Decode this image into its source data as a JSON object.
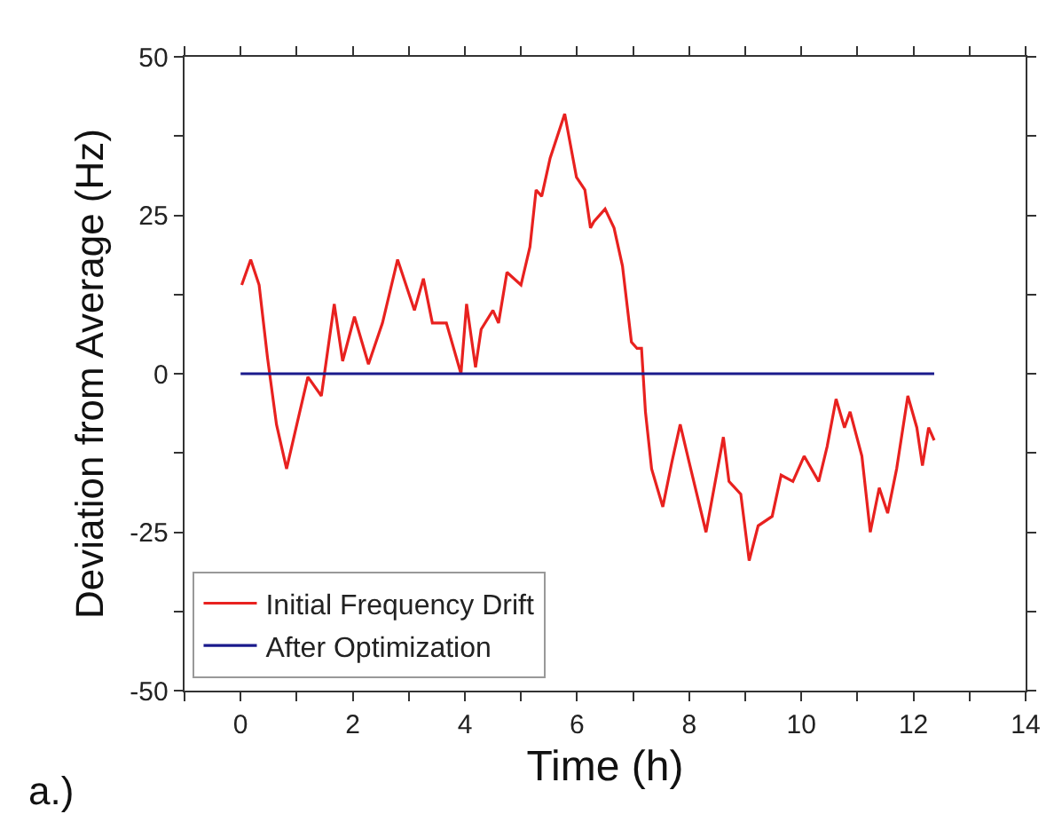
{
  "chart_data": {
    "type": "line",
    "xlabel": "Time (h)",
    "ylabel": "Deviation from Average (Hz)",
    "annotations": [
      "a.)"
    ],
    "series": [
      {
        "name": "Initial Frequency Drift",
        "color": "#e8211f",
        "x": [
          0.02,
          0.18,
          0.33,
          0.48,
          0.64,
          0.82,
          0.99,
          1.2,
          1.44,
          1.67,
          1.82,
          2.03,
          2.28,
          2.53,
          2.8,
          3.1,
          3.26,
          3.42,
          3.67,
          3.93,
          4.03,
          4.19,
          4.29,
          4.5,
          4.6,
          4.75,
          5.0,
          5.16,
          5.27,
          5.37,
          5.52,
          5.78,
          5.99,
          6.14,
          6.24,
          6.3,
          6.5,
          6.66,
          6.81,
          6.97,
          7.07,
          7.15,
          7.22,
          7.33,
          7.53,
          7.69,
          7.84,
          8.0,
          8.3,
          8.61,
          8.71,
          8.92,
          9.07,
          9.23,
          9.48,
          9.64,
          9.85,
          10.05,
          10.31,
          10.46,
          10.62,
          10.77,
          10.87,
          11.08,
          11.23,
          11.39,
          11.54,
          11.7,
          11.9,
          12.06,
          12.16,
          12.27,
          12.37
        ],
        "values": [
          14,
          18,
          14,
          2.5,
          -8,
          -15,
          -8.5,
          -0.5,
          -3.5,
          11,
          2,
          9,
          1.5,
          8,
          18,
          10,
          15,
          8,
          8,
          0,
          11,
          1,
          7,
          10,
          8,
          16,
          14,
          20,
          29,
          28,
          34,
          41,
          31,
          29,
          23,
          24,
          26,
          23,
          17,
          5,
          4,
          4,
          -6,
          -15,
          -21,
          -14,
          -8,
          -14,
          -25,
          -10,
          -17,
          -19,
          -29.5,
          -24,
          -22.5,
          -16,
          -17,
          -13,
          -17,
          -11.5,
          -4,
          -8.5,
          -6,
          -13,
          -25,
          -18,
          -22,
          -15,
          -3.5,
          -8.5,
          -14.5,
          -8.5,
          -10.5
        ]
      },
      {
        "name": "After Optimization",
        "color": "#1a1a8c",
        "x": [
          0,
          1,
          2,
          3,
          4,
          5,
          6,
          7,
          8,
          9,
          10,
          11,
          12,
          12.37
        ],
        "values": [
          0,
          0,
          0,
          0,
          0,
          0,
          0,
          0,
          0,
          0,
          0,
          0,
          0,
          0
        ]
      }
    ],
    "xlim": [
      -1,
      14
    ],
    "xticks": [
      {
        "value": -1,
        "label": null
      },
      0,
      {
        "value": 1,
        "label": null
      },
      2,
      {
        "value": 3,
        "label": null
      },
      4,
      {
        "value": 5,
        "label": null
      },
      6,
      {
        "value": 7,
        "label": null
      },
      8,
      {
        "value": 9,
        "label": null
      },
      10,
      {
        "value": 11,
        "label": null
      },
      12,
      {
        "value": 13,
        "label": null
      },
      14
    ],
    "ylim": [
      -50,
      50
    ],
    "yticks": [
      -50,
      {
        "value": -37.5,
        "label": null
      },
      -25,
      {
        "value": -12.5,
        "label": null
      },
      0,
      {
        "value": 12.5,
        "label": null
      },
      25,
      {
        "value": 37.5,
        "label": null
      },
      50
    ],
    "grid": false,
    "legend": "bottom left",
    "marker": "none",
    "line_style": "solid"
  }
}
